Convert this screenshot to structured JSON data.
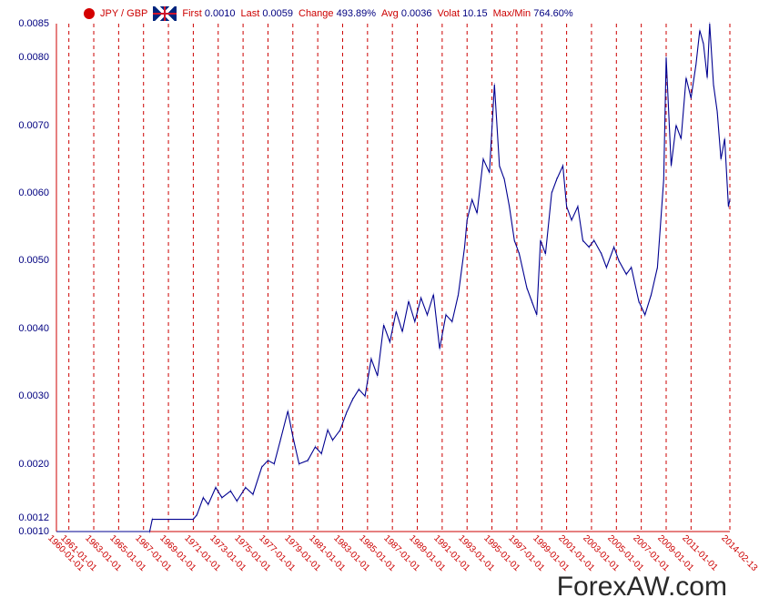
{
  "header": {
    "dot_color": "#d40000",
    "pair": "JPY / GBP",
    "metrics": [
      {
        "label": "First",
        "value": "0.0010"
      },
      {
        "label": "Last",
        "value": "0.0059"
      },
      {
        "label": "Change",
        "value": "493.89%"
      },
      {
        "label": "Avg",
        "value": "0.0036"
      },
      {
        "label": "Volat",
        "value": "10.15"
      },
      {
        "label": "Max/Min",
        "value": "764.60%"
      }
    ]
  },
  "chart": {
    "type": "line",
    "background_color": "#ffffff",
    "line_color": "#000090",
    "line_width": 1.1,
    "axis_color": "#cc0000",
    "grid_color": "#cc0000",
    "grid_dash": "4 4",
    "ylabel_color": "#000080",
    "xlabel_color": "#cc0000",
    "label_fontsize": 11,
    "ylim": [
      0.001,
      0.0085
    ],
    "yticks": [
      0.001,
      0.0012,
      0.002,
      0.003,
      0.004,
      0.005,
      0.006,
      0.007,
      0.008,
      0.0085
    ],
    "ytick_labels": [
      "0.0010",
      "0.0012",
      "0.0020",
      "0.0030",
      "0.0040",
      "0.0050",
      "0.0060",
      "0.0070",
      "0.0080",
      "0.0085"
    ],
    "xlim": [
      1960,
      2014.12
    ],
    "xgrid": [
      1961,
      1963,
      1965,
      1967,
      1969,
      1971,
      1973,
      1975,
      1977,
      1979,
      1981,
      1983,
      1985,
      1987,
      1989,
      1991,
      1993,
      1995,
      1997,
      1999,
      2001,
      2003,
      2005,
      2007,
      2009,
      2011,
      2014.12
    ],
    "xtick_labels_at": [
      1960,
      1961,
      1963,
      1965,
      1967,
      1969,
      1971,
      1973,
      1975,
      1977,
      1979,
      1981,
      1983,
      1985,
      1987,
      1989,
      1991,
      1993,
      1995,
      1997,
      1999,
      2001,
      2003,
      2005,
      2007,
      2009,
      2011,
      2014.12
    ],
    "xtick_labels": [
      "1960-01-01",
      "1961-01-01",
      "1963-01-01",
      "1965-01-01",
      "1967-01-01",
      "1969-01-01",
      "1971-01-01",
      "1973-01-01",
      "1975-01-01",
      "1977-01-01",
      "1979-01-01",
      "1981-01-01",
      "1983-01-01",
      "1985-01-01",
      "1987-01-01",
      "1989-01-01",
      "1991-01-01",
      "1993-01-01",
      "1995-01-01",
      "1997-01-01",
      "1999-01-01",
      "2001-01-01",
      "2003-01-01",
      "2005-01-01",
      "2007-01-01",
      "2009-01-01",
      "2011-01-01",
      "2014-02-13"
    ],
    "series": [
      {
        "x": 1960.0,
        "y": 0.001
      },
      {
        "x": 1967.5,
        "y": 0.001
      },
      {
        "x": 1967.7,
        "y": 0.00118
      },
      {
        "x": 1971.0,
        "y": 0.00118
      },
      {
        "x": 1971.3,
        "y": 0.00125
      },
      {
        "x": 1971.8,
        "y": 0.0015
      },
      {
        "x": 1972.2,
        "y": 0.0014
      },
      {
        "x": 1972.8,
        "y": 0.00165
      },
      {
        "x": 1973.3,
        "y": 0.0015
      },
      {
        "x": 1974.0,
        "y": 0.0016
      },
      {
        "x": 1974.5,
        "y": 0.00145
      },
      {
        "x": 1975.2,
        "y": 0.00165
      },
      {
        "x": 1975.8,
        "y": 0.00155
      },
      {
        "x": 1976.5,
        "y": 0.00195
      },
      {
        "x": 1977.0,
        "y": 0.00205
      },
      {
        "x": 1977.5,
        "y": 0.002
      },
      {
        "x": 1978.0,
        "y": 0.00235
      },
      {
        "x": 1978.6,
        "y": 0.00278
      },
      {
        "x": 1979.0,
        "y": 0.0024
      },
      {
        "x": 1979.5,
        "y": 0.002
      },
      {
        "x": 1980.2,
        "y": 0.00205
      },
      {
        "x": 1980.8,
        "y": 0.00225
      },
      {
        "x": 1981.3,
        "y": 0.00215
      },
      {
        "x": 1981.8,
        "y": 0.0025
      },
      {
        "x": 1982.2,
        "y": 0.00235
      },
      {
        "x": 1982.8,
        "y": 0.0025
      },
      {
        "x": 1983.3,
        "y": 0.00275
      },
      {
        "x": 1983.8,
        "y": 0.00295
      },
      {
        "x": 1984.3,
        "y": 0.0031
      },
      {
        "x": 1984.8,
        "y": 0.003
      },
      {
        "x": 1985.3,
        "y": 0.00355
      },
      {
        "x": 1985.8,
        "y": 0.0033
      },
      {
        "x": 1986.3,
        "y": 0.00405
      },
      {
        "x": 1986.8,
        "y": 0.0038
      },
      {
        "x": 1987.3,
        "y": 0.00425
      },
      {
        "x": 1987.8,
        "y": 0.00395
      },
      {
        "x": 1988.3,
        "y": 0.0044
      },
      {
        "x": 1988.8,
        "y": 0.0041
      },
      {
        "x": 1989.3,
        "y": 0.00445
      },
      {
        "x": 1989.8,
        "y": 0.0042
      },
      {
        "x": 1990.3,
        "y": 0.0045
      },
      {
        "x": 1990.8,
        "y": 0.0037
      },
      {
        "x": 1991.3,
        "y": 0.0042
      },
      {
        "x": 1991.8,
        "y": 0.0041
      },
      {
        "x": 1992.3,
        "y": 0.0045
      },
      {
        "x": 1992.8,
        "y": 0.0052
      },
      {
        "x": 1993.0,
        "y": 0.0056
      },
      {
        "x": 1993.4,
        "y": 0.0059
      },
      {
        "x": 1993.8,
        "y": 0.0057
      },
      {
        "x": 1994.3,
        "y": 0.0065
      },
      {
        "x": 1994.8,
        "y": 0.0063
      },
      {
        "x": 1995.2,
        "y": 0.0076
      },
      {
        "x": 1995.6,
        "y": 0.0064
      },
      {
        "x": 1996.0,
        "y": 0.0062
      },
      {
        "x": 1996.4,
        "y": 0.0058
      },
      {
        "x": 1996.8,
        "y": 0.0053
      },
      {
        "x": 1997.2,
        "y": 0.0051
      },
      {
        "x": 1997.8,
        "y": 0.0046
      },
      {
        "x": 1998.2,
        "y": 0.0044
      },
      {
        "x": 1998.6,
        "y": 0.0042
      },
      {
        "x": 1998.9,
        "y": 0.0053
      },
      {
        "x": 1999.3,
        "y": 0.0051
      },
      {
        "x": 1999.8,
        "y": 0.006
      },
      {
        "x": 2000.2,
        "y": 0.0062
      },
      {
        "x": 2000.7,
        "y": 0.0064
      },
      {
        "x": 2001.0,
        "y": 0.0058
      },
      {
        "x": 2001.4,
        "y": 0.0056
      },
      {
        "x": 2001.9,
        "y": 0.0058
      },
      {
        "x": 2002.3,
        "y": 0.0053
      },
      {
        "x": 2002.8,
        "y": 0.0052
      },
      {
        "x": 2003.2,
        "y": 0.0053
      },
      {
        "x": 2003.8,
        "y": 0.0051
      },
      {
        "x": 2004.2,
        "y": 0.0049
      },
      {
        "x": 2004.8,
        "y": 0.0052
      },
      {
        "x": 2005.2,
        "y": 0.005
      },
      {
        "x": 2005.8,
        "y": 0.0048
      },
      {
        "x": 2006.2,
        "y": 0.0049
      },
      {
        "x": 2006.8,
        "y": 0.0044
      },
      {
        "x": 2007.3,
        "y": 0.0042
      },
      {
        "x": 2007.8,
        "y": 0.0045
      },
      {
        "x": 2008.3,
        "y": 0.0049
      },
      {
        "x": 2008.8,
        "y": 0.0062
      },
      {
        "x": 2009.0,
        "y": 0.008
      },
      {
        "x": 2009.4,
        "y": 0.0064
      },
      {
        "x": 2009.8,
        "y": 0.007
      },
      {
        "x": 2010.2,
        "y": 0.0068
      },
      {
        "x": 2010.6,
        "y": 0.0077
      },
      {
        "x": 2011.0,
        "y": 0.0074
      },
      {
        "x": 2011.4,
        "y": 0.0079
      },
      {
        "x": 2011.7,
        "y": 0.0084
      },
      {
        "x": 2012.0,
        "y": 0.0082
      },
      {
        "x": 2012.3,
        "y": 0.0077
      },
      {
        "x": 2012.5,
        "y": 0.0085
      },
      {
        "x": 2012.8,
        "y": 0.0076
      },
      {
        "x": 2013.1,
        "y": 0.0072
      },
      {
        "x": 2013.4,
        "y": 0.0065
      },
      {
        "x": 2013.7,
        "y": 0.0068
      },
      {
        "x": 2014.0,
        "y": 0.0058
      },
      {
        "x": 2014.12,
        "y": 0.0059
      }
    ]
  },
  "watermark": "ForexAW.com"
}
